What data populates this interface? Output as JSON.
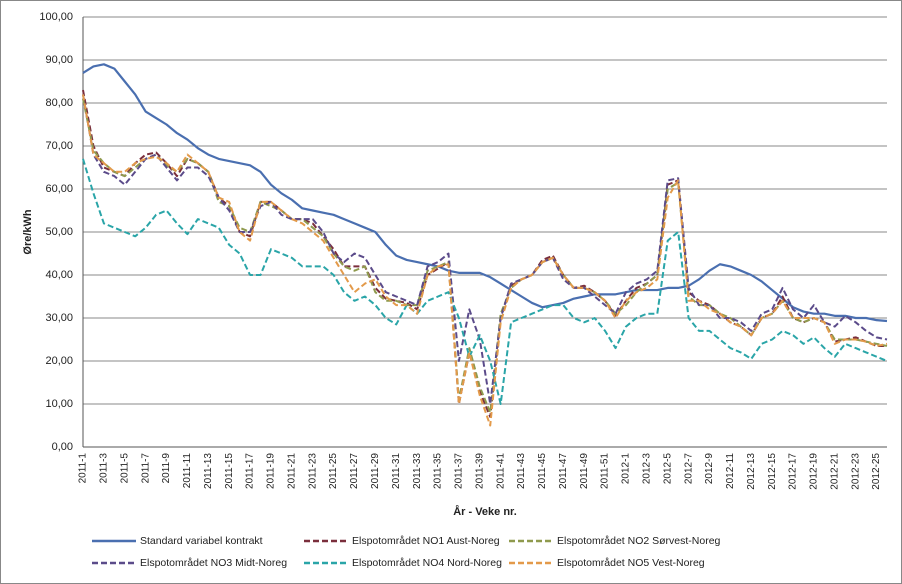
{
  "chart_data": {
    "type": "line",
    "xlabel": "År - Veke nr.",
    "ylabel": "Øre/kWh",
    "categories": [
      "2011-1",
      null,
      "2011-3",
      null,
      "2011-5",
      null,
      "2011-7",
      null,
      "2011-9",
      null,
      "2011-11",
      null,
      "2011-13",
      null,
      "2011-15",
      null,
      "2011-17",
      null,
      "2011-19",
      null,
      "2011-21",
      null,
      "2011-23",
      null,
      "2011-25",
      null,
      "2011-27",
      null,
      "2011-29",
      null,
      "2011-31",
      null,
      "2011-33",
      null,
      "2011-35",
      null,
      "2011-37",
      null,
      "2011-39",
      null,
      "2011-41",
      null,
      "2011-43",
      null,
      "2011-45",
      null,
      "2011-47",
      null,
      "2011-49",
      null,
      "2011-51",
      null,
      "2012-1",
      null,
      "2012-3",
      null,
      "2012-5",
      null,
      "2012-7",
      null,
      "2012-9",
      null,
      "2012-11",
      null,
      "2012-13",
      null,
      "2012-15",
      null,
      "2012-17",
      null,
      "2012-19",
      null,
      "2012-21",
      null,
      "2012-23",
      null,
      "2012-25",
      null
    ],
    "ylim": [
      0,
      100
    ],
    "yticks": [
      {
        "value": 0,
        "label": "0,00"
      },
      {
        "value": 10,
        "label": "10,00"
      },
      {
        "value": 20,
        "label": "20,00"
      },
      {
        "value": 30,
        "label": "30,00"
      },
      {
        "value": 40,
        "label": "40,00"
      },
      {
        "value": 50,
        "label": "50,00"
      },
      {
        "value": 60,
        "label": "60,00"
      },
      {
        "value": 70,
        "label": "70,00"
      },
      {
        "value": 80,
        "label": "80,00"
      },
      {
        "value": 90,
        "label": "90,00"
      },
      {
        "value": 100,
        "label": "100,00"
      }
    ],
    "grid": true,
    "legend": "bottom",
    "series": [
      {
        "name": "Standard variabel kontrakt",
        "color": "#4a6fb0",
        "style": "solid",
        "values": [
          87,
          88.5,
          89,
          88,
          85,
          82,
          78,
          76.5,
          75,
          73,
          71.5,
          69.5,
          68,
          67,
          66.5,
          66,
          65.5,
          64,
          61,
          59,
          57.5,
          55.5,
          55,
          54.5,
          54,
          53,
          52,
          51,
          50,
          47,
          44.5,
          43.5,
          43,
          42.5,
          42,
          41,
          40.5,
          40.5,
          40.5,
          39.5,
          38,
          36.5,
          35,
          33.5,
          32.5,
          33,
          33.5,
          34.5,
          35,
          35.5,
          35.5,
          35.5,
          36,
          36.5,
          36.5,
          36.5,
          37,
          37,
          37.5,
          39,
          41,
          42.5,
          42,
          41,
          40,
          38.5,
          36.5,
          34.5,
          32.5,
          31.5,
          31,
          31,
          30.5,
          30.5,
          30,
          30,
          29.5,
          29.3
        ]
      },
      {
        "name": "Elspotområdet NO1 Aust-Noreg",
        "color": "#7a2e3c",
        "style": "dashed",
        "values": [
          83,
          70,
          65,
          64,
          63,
          66,
          68,
          68.5,
          66,
          63,
          67,
          66,
          64,
          58,
          56,
          50,
          49,
          57,
          57,
          55,
          53,
          53,
          52,
          49,
          46,
          42,
          42,
          42,
          37,
          34.5,
          34,
          33.5,
          32,
          40,
          41.5,
          43,
          10,
          22,
          13,
          7,
          30,
          37.5,
          39,
          40,
          43.5,
          44.5,
          40,
          37,
          37.5,
          36,
          34,
          30.5,
          34,
          37,
          38,
          40,
          61,
          62,
          36,
          34,
          33,
          31,
          29,
          28,
          26,
          30,
          31,
          35,
          30,
          29,
          30,
          29,
          24.5,
          25,
          25.5,
          24.5,
          23.5,
          23.5
        ]
      },
      {
        "name": "Elspotområdet NO2 Sørvest-Noreg",
        "color": "#8f9a4e",
        "style": "dashed",
        "values": [
          81,
          69,
          66,
          64,
          63,
          65,
          67,
          68,
          65.5,
          64,
          67,
          66,
          64,
          57,
          56,
          51,
          50,
          57,
          56,
          55,
          53,
          53,
          51,
          49,
          45,
          42,
          41,
          42,
          36,
          34,
          34,
          33,
          33,
          41,
          42,
          43,
          11,
          23,
          14,
          8,
          31,
          37,
          39,
          40,
          43,
          44,
          40,
          37,
          37,
          36,
          34,
          31,
          33,
          36,
          38,
          40,
          60,
          61.5,
          35,
          33,
          33,
          31,
          30,
          28,
          26,
          30,
          31,
          34,
          30,
          29,
          30,
          29,
          25,
          25,
          25,
          24.5,
          24,
          23.5
        ]
      },
      {
        "name": "Elspotområdet NO3 Midt-Noreg",
        "color": "#5b4b8a",
        "style": "dashed",
        "values": [
          82,
          68,
          64,
          63,
          61,
          64,
          67,
          68,
          65,
          62,
          65,
          65,
          63,
          58,
          55,
          50,
          50,
          56,
          57,
          54,
          53,
          53,
          53,
          50,
          45,
          43,
          45,
          44,
          40,
          36,
          35,
          34,
          33,
          42,
          43,
          45,
          20,
          32,
          25,
          10,
          30,
          38,
          39,
          40,
          43,
          44,
          39,
          37,
          37,
          35,
          33,
          31,
          36,
          38,
          39,
          41,
          62,
          62.5,
          37,
          33,
          33,
          30,
          30,
          29,
          27,
          31,
          32,
          37,
          32,
          30,
          33,
          29,
          28,
          30.5,
          29,
          27,
          25.5,
          25
        ]
      },
      {
        "name": "Elspotområdet NO4 Nord-Noreg",
        "color": "#2aa5a8",
        "style": "dashed",
        "values": [
          67,
          59,
          52,
          51,
          50,
          49,
          51,
          54,
          55,
          52,
          49.5,
          53,
          52,
          51,
          47,
          45,
          40,
          40,
          46,
          45,
          44,
          42,
          42,
          42,
          40,
          36,
          34,
          35,
          33,
          30,
          28.5,
          33,
          31,
          34,
          35,
          36,
          30,
          21,
          26,
          20,
          10,
          29,
          30,
          31,
          32,
          33,
          33,
          30,
          29,
          30,
          27,
          23,
          28,
          30,
          31,
          31,
          48,
          50,
          30,
          27,
          27,
          25,
          23,
          22,
          20.5,
          24,
          25,
          27,
          26,
          24,
          25.5,
          23,
          21,
          24,
          23,
          22,
          21,
          20
        ]
      },
      {
        "name": "Elspotområdet NO5 Vest-Noreg",
        "color": "#e39a4a",
        "style": "dashed",
        "values": [
          82,
          68,
          66,
          64,
          64,
          66,
          67,
          67.5,
          66,
          64,
          68,
          66,
          64,
          58,
          57,
          50,
          48,
          57,
          57,
          55,
          53,
          52,
          50,
          48,
          44,
          40,
          36,
          38,
          39,
          35,
          33,
          33,
          31,
          40,
          42,
          42.5,
          10,
          22,
          12,
          5,
          29,
          37,
          39,
          40,
          43,
          44,
          40,
          37,
          37,
          36,
          34,
          30,
          34,
          36,
          37,
          39,
          58,
          62,
          34,
          34,
          32,
          31,
          29,
          28,
          26,
          30,
          31,
          34,
          30,
          30,
          30,
          29,
          24,
          25,
          25,
          24.5,
          23.5,
          24
        ]
      }
    ]
  }
}
